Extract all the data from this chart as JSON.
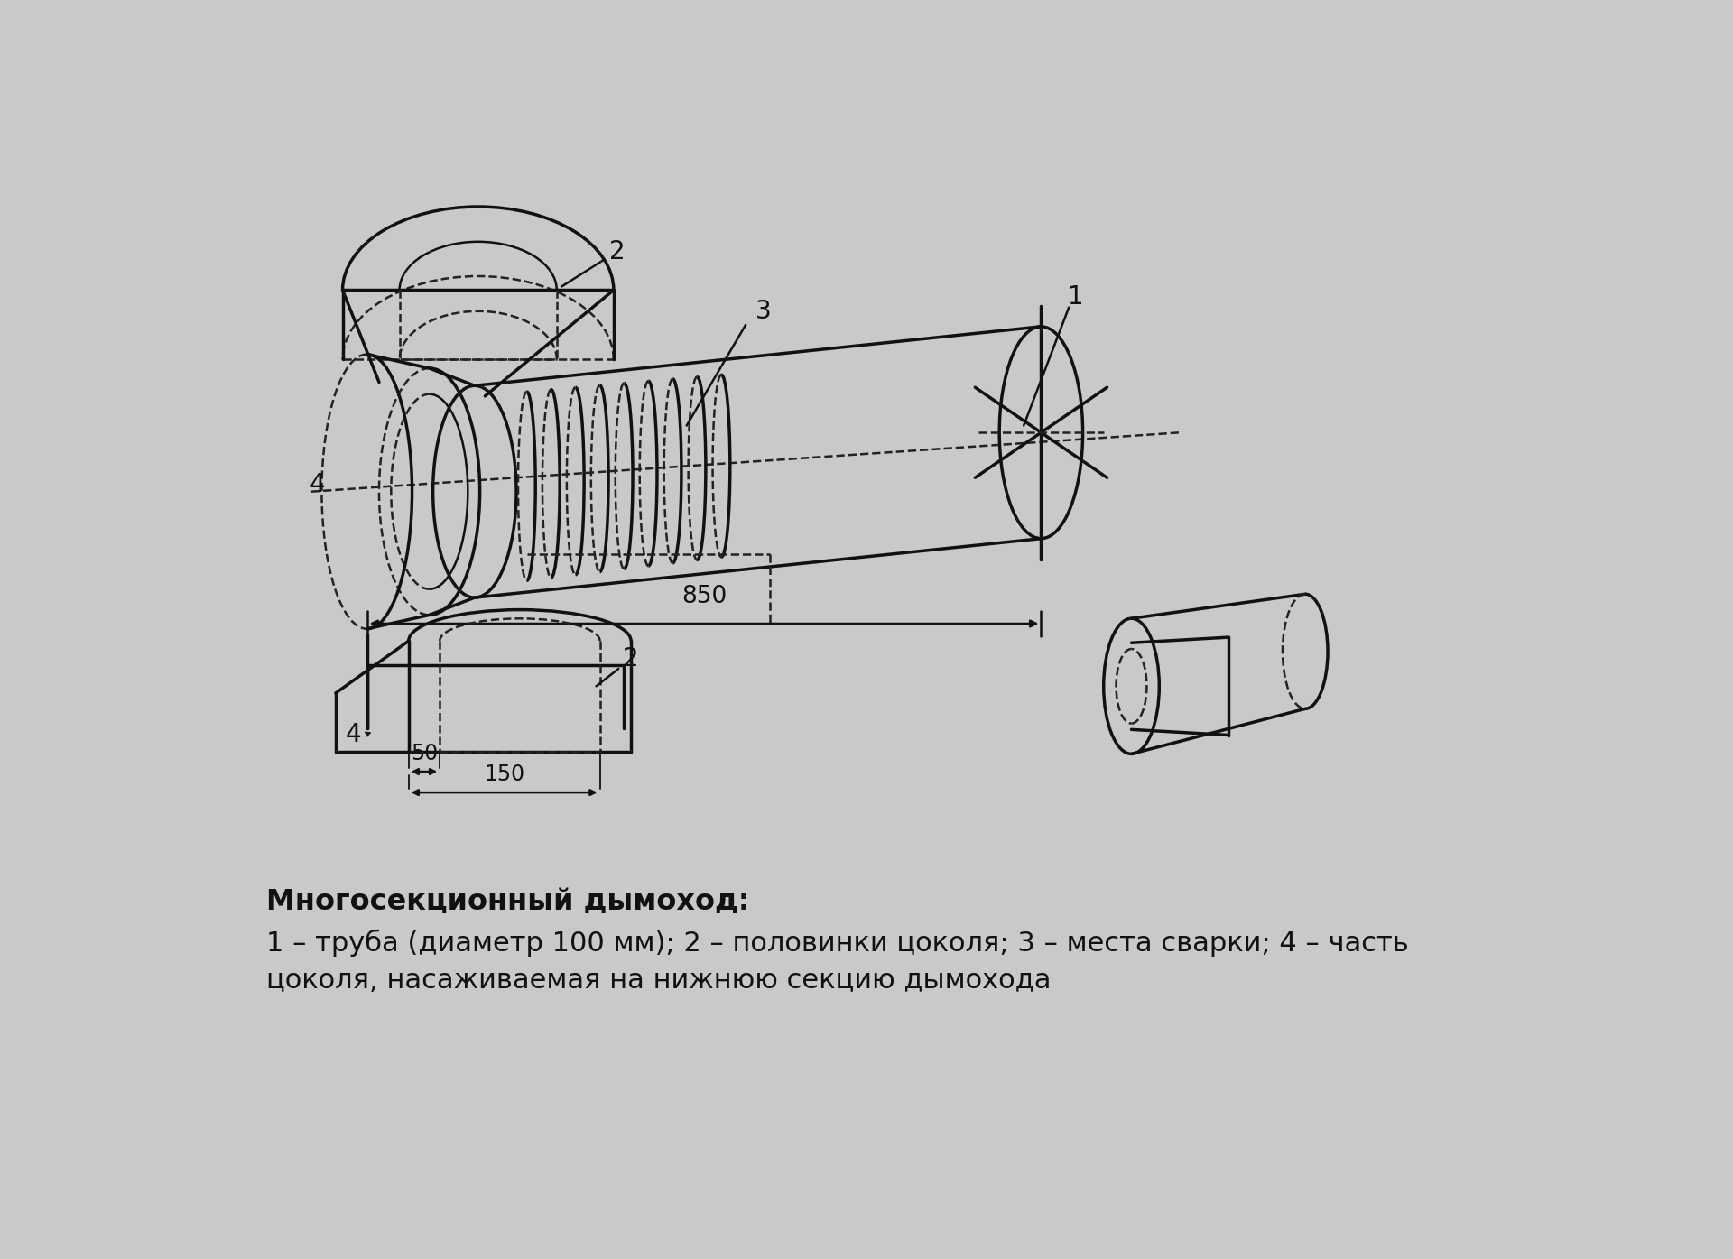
{
  "bg_color": "#c9c9c9",
  "line_color": "#111111",
  "dashed_color": "#222222",
  "title_bold": "Многосекционный дымоход:",
  "caption_line1": "1 – труба (диаметр 100 мм); 2 – половинки цоколя; 3 – места сварки; 4 – часть",
  "caption_line2": "цоколя, насаживаемая на нижнюю секцию дымохода",
  "dim_850": "850",
  "dim_50": "50",
  "dim_150": "150",
  "label_1": "1",
  "label_2": "2",
  "label_3": "3",
  "label_4": "4",
  "font_size_caption": 22,
  "font_size_bold": 23,
  "font_size_label": 20,
  "font_size_dim": 19
}
